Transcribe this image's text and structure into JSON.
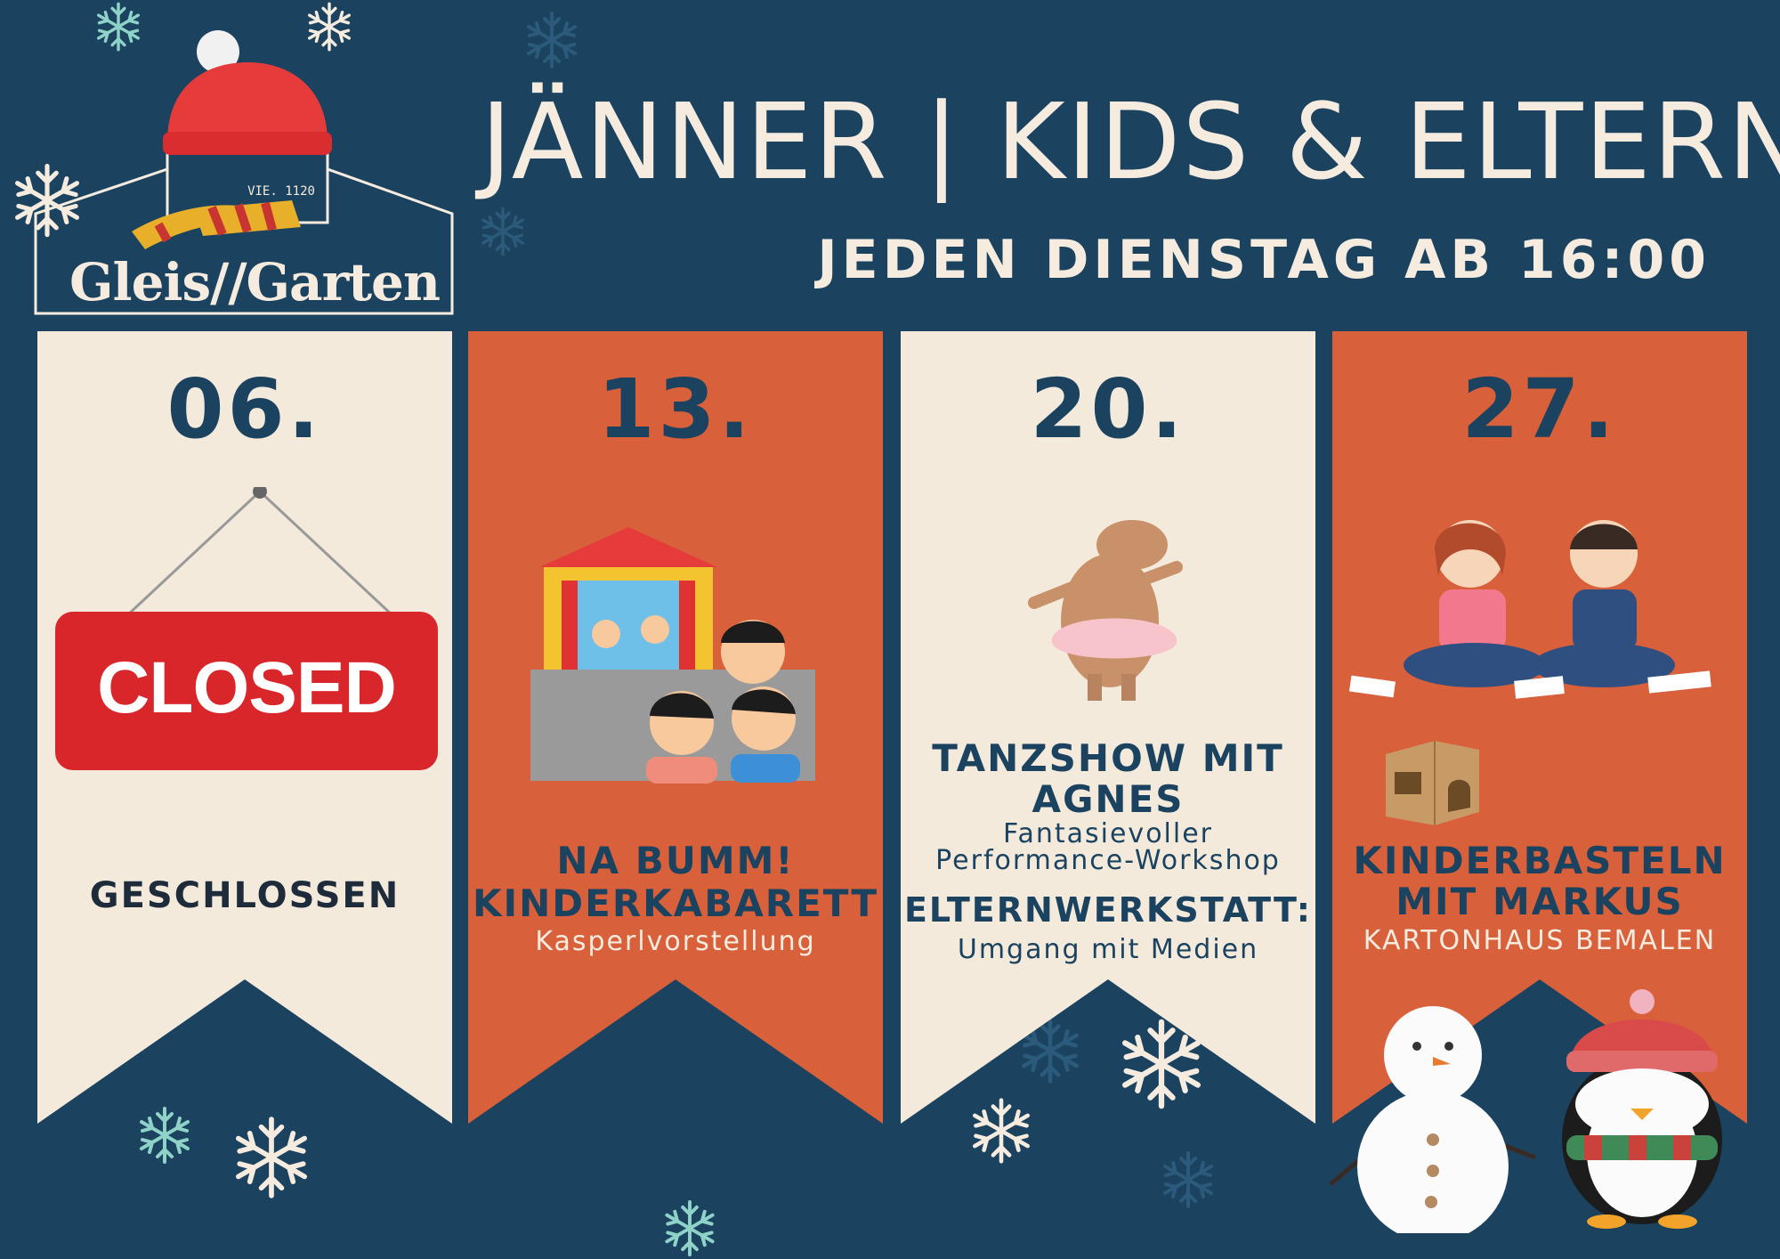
{
  "logo": {
    "brand": "Gleis//Garten",
    "sub": "VIE. 1120",
    "icon": "beanie-hat-scarf-icon"
  },
  "header": {
    "title": "JÄNNER | KIDS & ELTERN",
    "subtitle": "JEDEN DIENSTAG AB 16:00"
  },
  "events": [
    {
      "date": "06.",
      "sign_text": "CLOSED",
      "title": "GESCHLOSSEN",
      "icon": "closed-sign-icon"
    },
    {
      "date": "13.",
      "title_line1": "NA BUMM!",
      "title_line2": "KINDERKABARETT",
      "description": "Kasperlvorstellung",
      "icon": "puppet-theater-icon"
    },
    {
      "date": "20.",
      "title_line1": "TANZSHOW MIT",
      "title_line2": "AGNES",
      "description_line1": "Fantasievoller",
      "description_line2": "Performance-Workshop",
      "title2": "ELTERNWERKSTATT:",
      "description2": "Umgang mit Medien",
      "icon": "dancing-capybara-icon"
    },
    {
      "date": "27.",
      "title_line1": "KINDERBASTELN",
      "title_line2": "MIT MARKUS",
      "description": "KARTONHAUS BEMALEN",
      "icon": "kids-crafting-icon",
      "icon2": "cardboard-house-icon"
    }
  ],
  "decorations": [
    "snowflake-icon",
    "snowman-icon",
    "penguin-icon"
  ],
  "colors": {
    "background": "#1b4360",
    "cream": "#f3eadc",
    "orange": "#d8603a",
    "navy_text": "#1b4360",
    "closed_red": "#d9262b"
  }
}
